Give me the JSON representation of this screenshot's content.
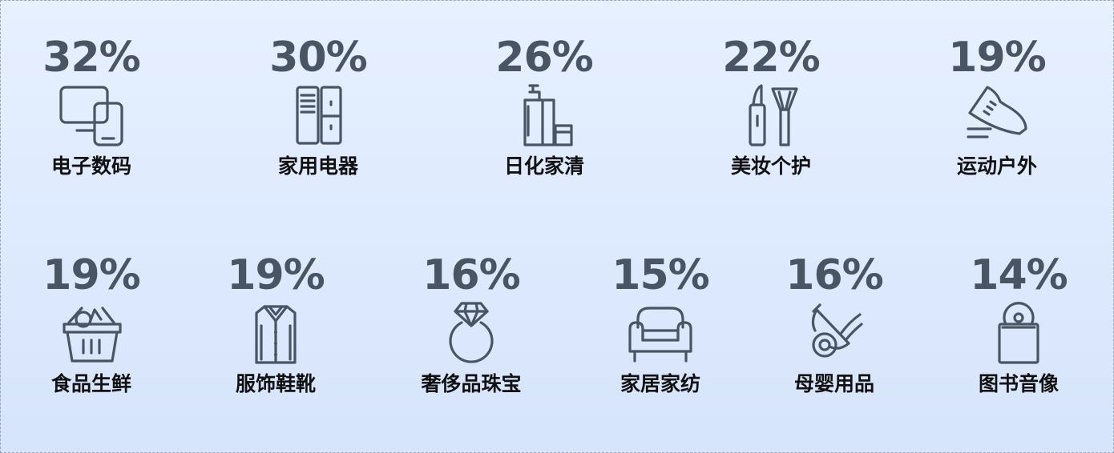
{
  "categories": [
    {
      "percent": "32%",
      "label": "电子数码",
      "icon": "devices-icon"
    },
    {
      "percent": "30%",
      "label": "家用电器",
      "icon": "refrigerator-icon"
    },
    {
      "percent": "26%",
      "label": "日化家清",
      "icon": "toiletries-icon"
    },
    {
      "percent": "22%",
      "label": "美妆个护",
      "icon": "lipstick-brush-icon"
    },
    {
      "percent": "19%",
      "label": "运动户外",
      "icon": "sneaker-icon"
    },
    {
      "percent": "19%",
      "label": "食品生鲜",
      "icon": "grocery-basket-icon"
    },
    {
      "percent": "19%",
      "label": "服饰鞋靴",
      "icon": "shirt-icon"
    },
    {
      "percent": "16%",
      "label": "奢侈品珠宝",
      "icon": "diamond-ring-icon"
    },
    {
      "percent": "15%",
      "label": "家居家纺",
      "icon": "sofa-icon"
    },
    {
      "percent": "16%",
      "label": "母婴用品",
      "icon": "pacifier-icon"
    },
    {
      "percent": "14%",
      "label": "图书音像",
      "icon": "disc-book-icon"
    }
  ]
}
